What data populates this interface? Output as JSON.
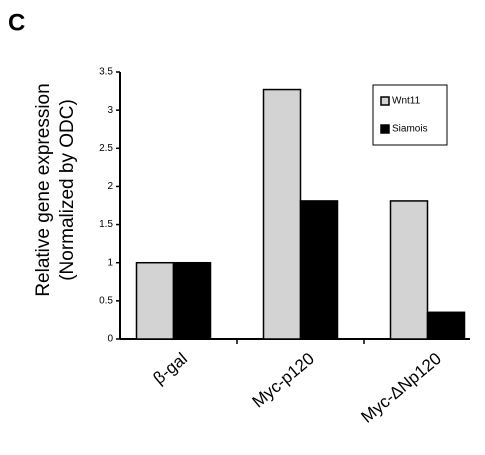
{
  "chart_data": {
    "type": "bar",
    "panel_label": "C",
    "ylabel": [
      "Relative gene expression",
      "(Normalized by ODC)"
    ],
    "categories": [
      "β-gal",
      "Myc-p120",
      "Myc-ΔNp120"
    ],
    "series": [
      {
        "name": "Wnt11",
        "color": "#d3d3d3",
        "values": [
          1,
          3.27,
          1.81
        ]
      },
      {
        "name": "Siamois",
        "color": "#000000",
        "values": [
          1,
          1.81,
          0.35
        ]
      }
    ],
    "ylim": [
      0,
      3.5
    ],
    "yticks": [
      0,
      0.5,
      1,
      1.5,
      2,
      2.5,
      3,
      3.5
    ],
    "legend": "upper right"
  }
}
